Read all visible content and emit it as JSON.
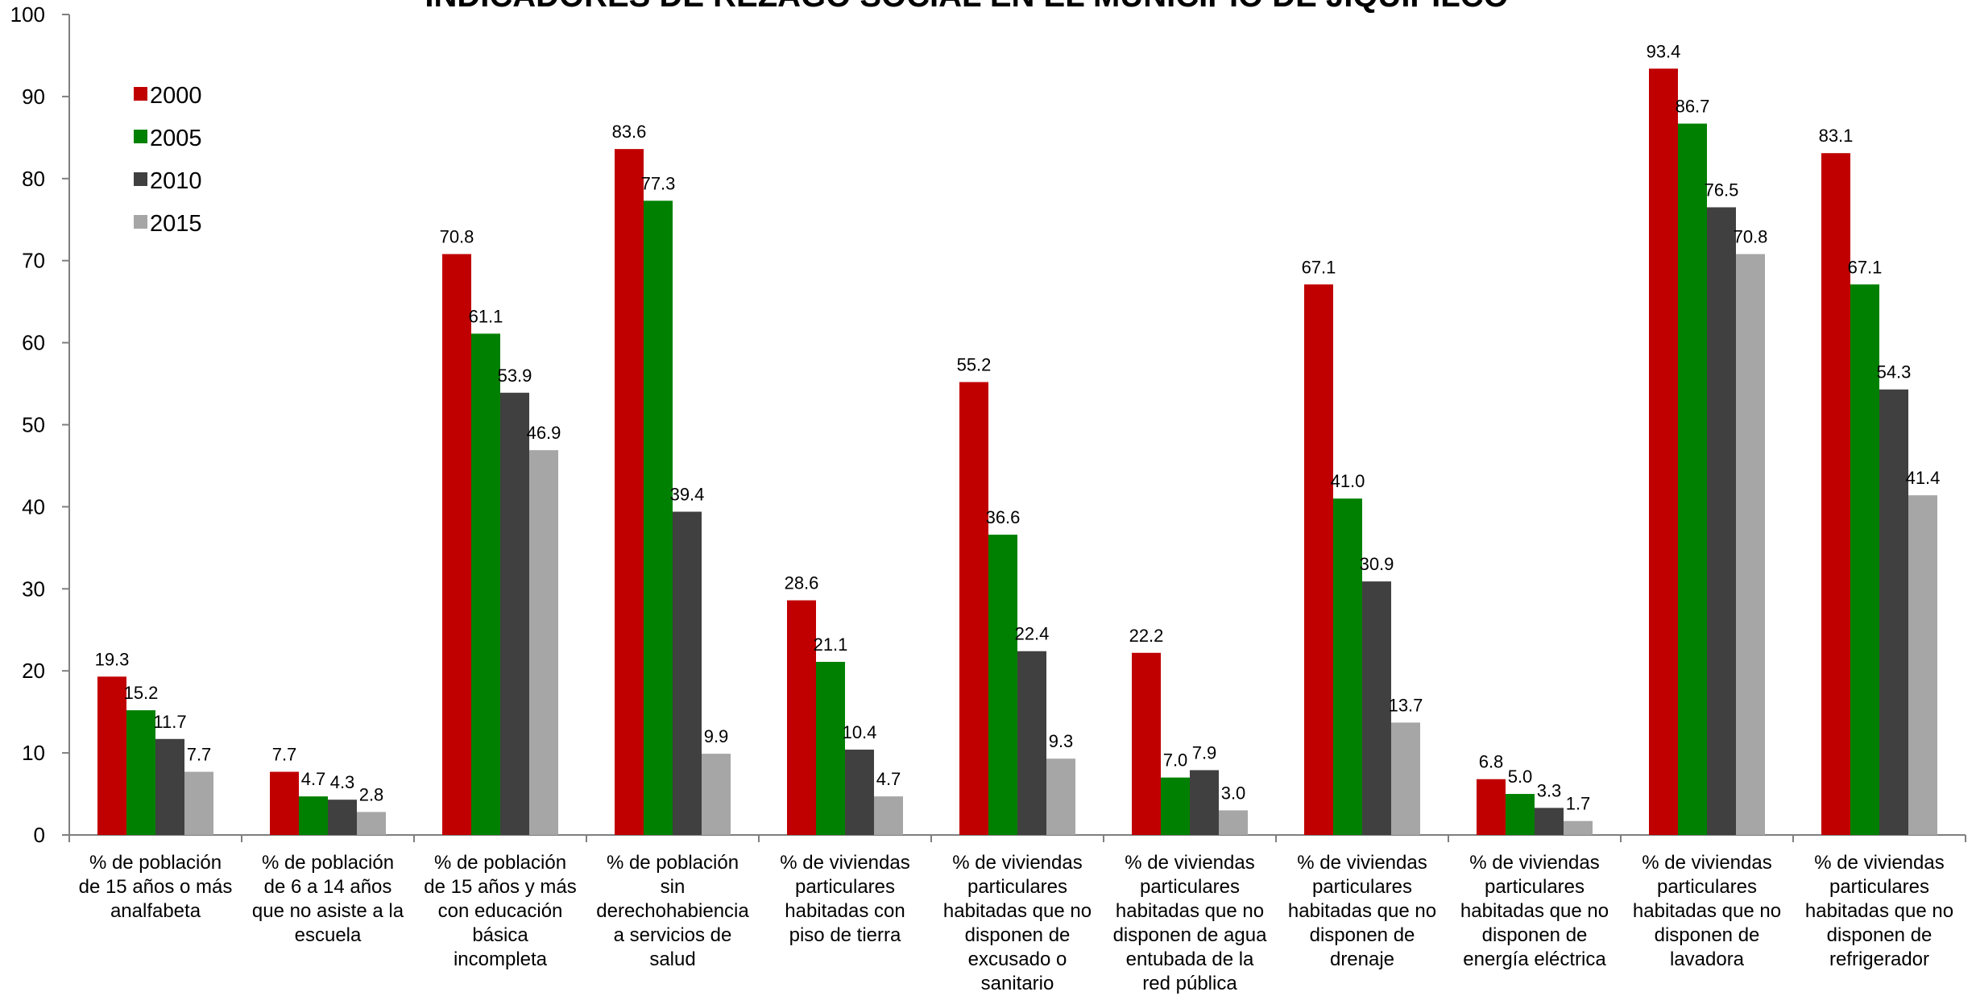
{
  "chart_data": {
    "type": "bar",
    "title": "INDICADORES DE REZAGO SOCIAL EN EL MUNICIPIO DE JIQUIPILCO",
    "xlabel": "",
    "ylabel": "",
    "ylim": [
      0,
      100
    ],
    "yticks": [
      0,
      10,
      20,
      30,
      40,
      50,
      60,
      70,
      80,
      90,
      100
    ],
    "grid": false,
    "legend_position": "top-left",
    "categories": [
      [
        "% de población",
        "de 15 años o más",
        "analfabeta"
      ],
      [
        "% de población",
        "de 6 a 14 años",
        "que no asiste a la",
        "escuela"
      ],
      [
        "% de población",
        "de 15 años y más",
        "con educación",
        "básica",
        "incompleta"
      ],
      [
        "% de población",
        "sin",
        "derechohabiencia",
        "a servicios de",
        "salud"
      ],
      [
        "% de viviendas",
        "particulares",
        "habitadas con",
        "piso de tierra"
      ],
      [
        "% de viviendas",
        "particulares",
        "habitadas que no",
        "disponen de",
        "excusado o",
        "sanitario"
      ],
      [
        "% de viviendas",
        "particulares",
        "habitadas que no",
        "disponen de agua",
        "entubada de la",
        "red pública"
      ],
      [
        "% de viviendas",
        "particulares",
        "habitadas que no",
        "disponen de",
        "drenaje"
      ],
      [
        "% de viviendas",
        "particulares",
        "habitadas que no",
        "disponen de",
        "energía eléctrica"
      ],
      [
        "% de viviendas",
        "particulares",
        "habitadas que no",
        "disponen de",
        "lavadora"
      ],
      [
        "% de viviendas",
        "particulares",
        "habitadas que no",
        "disponen de",
        "refrigerador"
      ]
    ],
    "series": [
      {
        "name": "2000",
        "color": "#c00000",
        "values": [
          19.3,
          7.7,
          70.8,
          83.6,
          28.6,
          55.2,
          22.2,
          67.1,
          6.8,
          93.4,
          83.1
        ]
      },
      {
        "name": "2005",
        "color": "#008000",
        "values": [
          15.2,
          4.7,
          61.1,
          77.3,
          21.1,
          36.6,
          7.0,
          41.0,
          5.0,
          86.7,
          67.1
        ]
      },
      {
        "name": "2010",
        "color": "#404040",
        "values": [
          11.7,
          4.3,
          53.9,
          39.4,
          10.4,
          22.4,
          7.9,
          30.9,
          3.3,
          76.5,
          54.3
        ]
      },
      {
        "name": "2015",
        "color": "#a6a6a6",
        "values": [
          7.7,
          2.8,
          46.9,
          9.9,
          4.7,
          9.3,
          3.0,
          13.7,
          1.7,
          70.8,
          41.4
        ]
      }
    ]
  }
}
